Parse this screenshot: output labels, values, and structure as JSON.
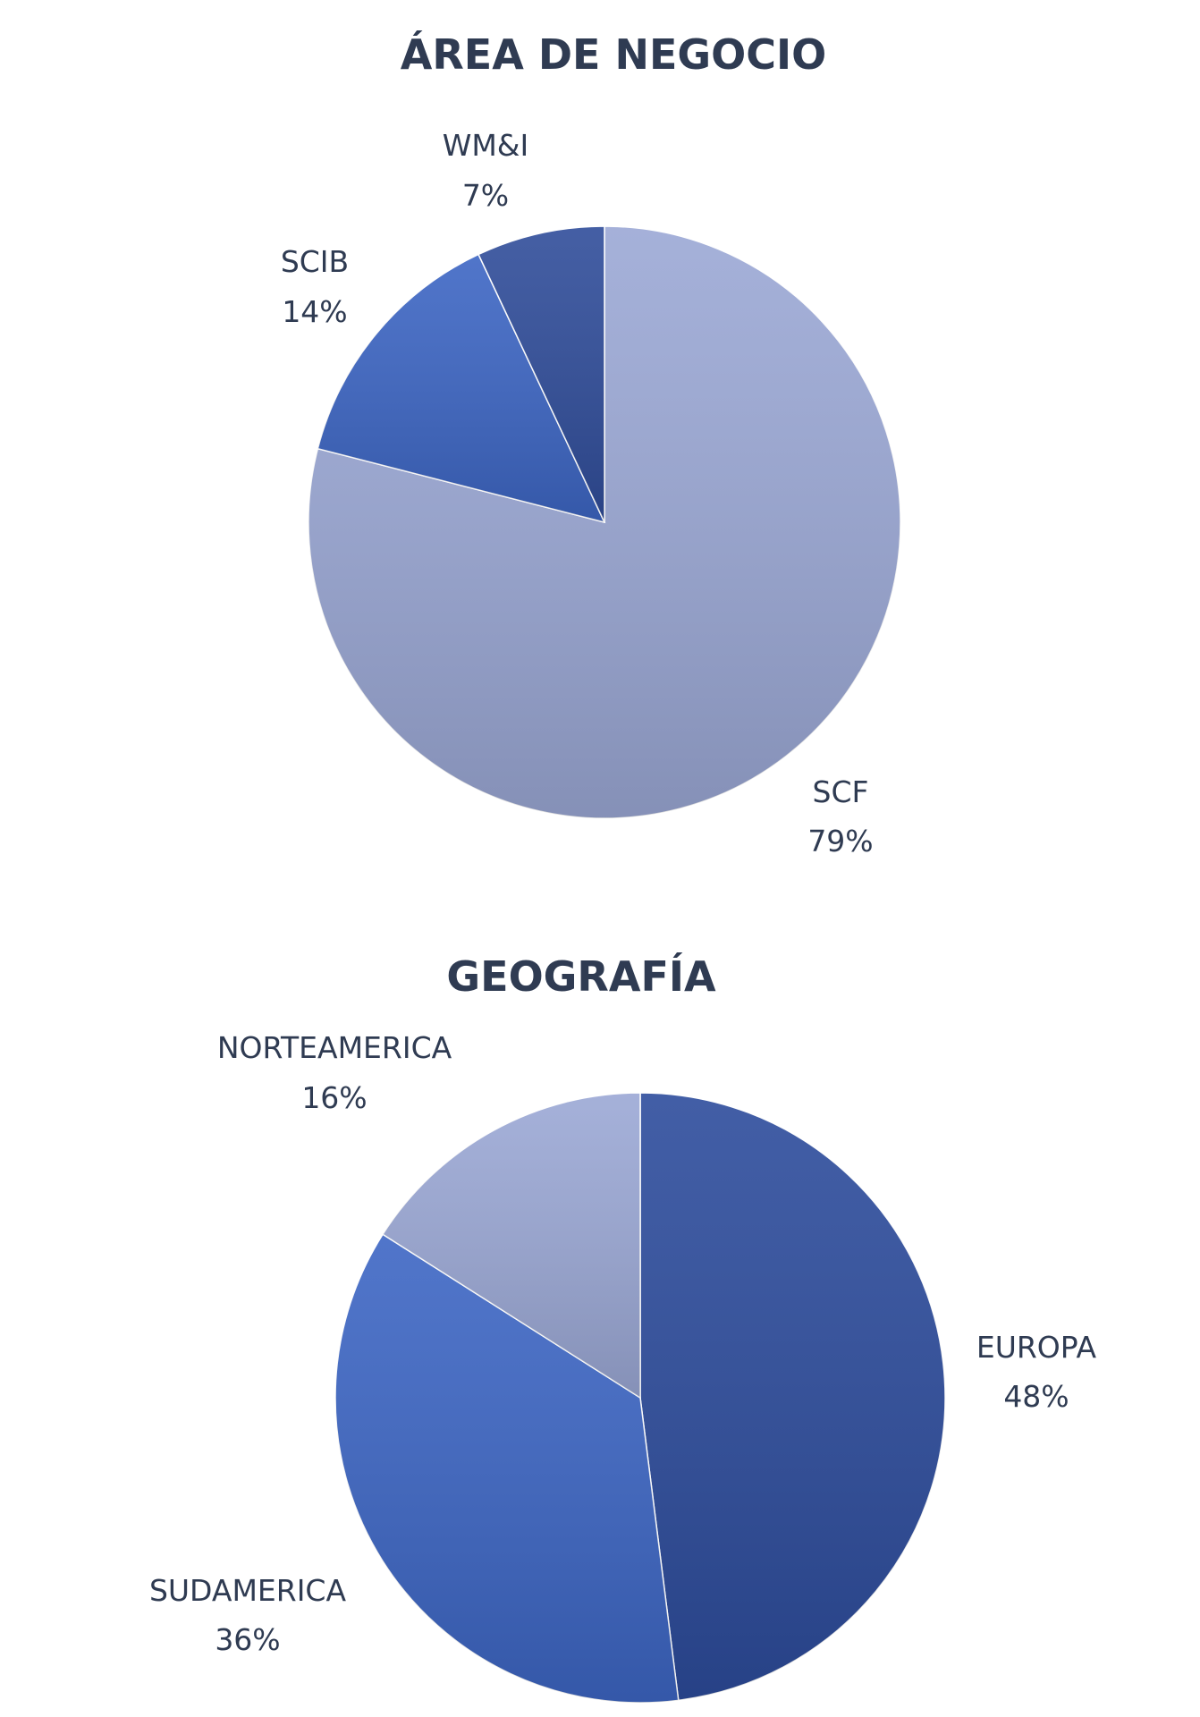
{
  "chart_data": [
    {
      "type": "pie",
      "title": "ÁREA DE NEGOCIO",
      "slices": [
        {
          "label": "SCF",
          "value": 79,
          "value_label": "79%",
          "color": "#9ba8d5"
        },
        {
          "label": "SCIB",
          "value": 14,
          "value_label": "14%",
          "color": "#3d66c4"
        },
        {
          "label": "WM&I",
          "value": 7,
          "value_label": "7%",
          "color": "#304d9a"
        }
      ],
      "start": "12 o'clock",
      "direction": "clockwise"
    },
    {
      "type": "pie",
      "title": "GEOGRAFÍA",
      "slices": [
        {
          "label": "EUROPA",
          "value": 48,
          "value_label": "48%",
          "color": "#2d4c9c"
        },
        {
          "label": "SUDAMERICA",
          "value": 36,
          "value_label": "36%",
          "color": "#3d66c4"
        },
        {
          "label": "NORTEAMERICA",
          "value": 16,
          "value_label": "16%",
          "color": "#9ba8d5"
        }
      ],
      "start": "12 o'clock",
      "direction": "clockwise"
    }
  ]
}
